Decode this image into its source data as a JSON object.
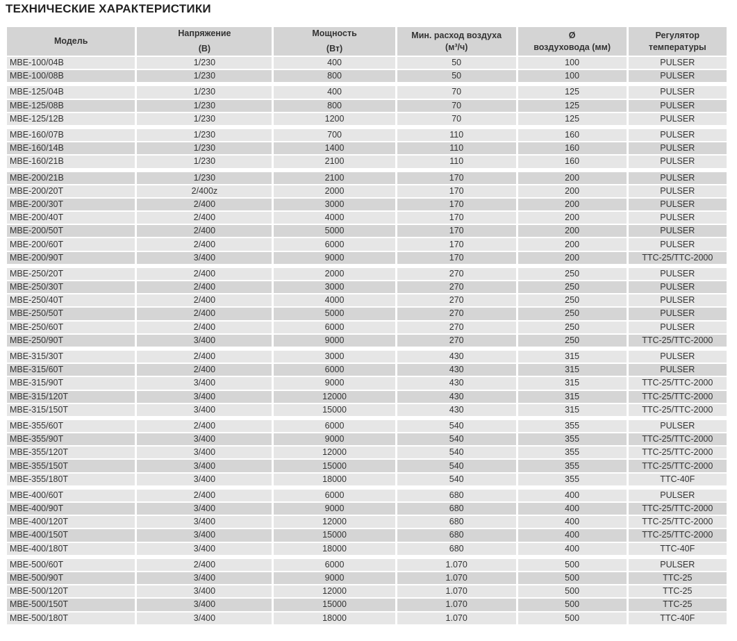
{
  "title": "ТЕХНИЧЕСКИЕ ХАРАКТЕРИСТИКИ",
  "columns": [
    {
      "line1": "Модель",
      "line2": ""
    },
    {
      "line1": "Напряжение",
      "line2": "(В)"
    },
    {
      "line1": "Мощность",
      "line2": "(Вт)"
    },
    {
      "line1": "Мин. расход воздуха",
      "line2": "(м³/ч)"
    },
    {
      "line1": "Ø",
      "line2": "воздуховода (мм)"
    },
    {
      "line1": "Регулятор",
      "line2": "температуры"
    }
  ],
  "groups": [
    [
      [
        "MBE-100/04B",
        "1/230",
        "400",
        "50",
        "100",
        "PULSER"
      ],
      [
        "MBE-100/08B",
        "1/230",
        "800",
        "50",
        "100",
        "PULSER"
      ]
    ],
    [
      [
        "MBE-125/04B",
        "1/230",
        "400",
        "70",
        "125",
        "PULSER"
      ],
      [
        "MBE-125/08B",
        "1/230",
        "800",
        "70",
        "125",
        "PULSER"
      ],
      [
        "MBE-125/12B",
        "1/230",
        "1200",
        "70",
        "125",
        "PULSER"
      ]
    ],
    [
      [
        "MBE-160/07B",
        "1/230",
        "700",
        "110",
        "160",
        "PULSER"
      ],
      [
        "MBE-160/14B",
        "1/230",
        "1400",
        "110",
        "160",
        "PULSER"
      ],
      [
        "MBE-160/21B",
        "1/230",
        "2100",
        "110",
        "160",
        "PULSER"
      ]
    ],
    [
      [
        "MBE-200/21B",
        "1/230",
        "2100",
        "170",
        "200",
        "PULSER"
      ],
      [
        "MBE-200/20T",
        "2/400z",
        "2000",
        "170",
        "200",
        "PULSER"
      ],
      [
        "MBE-200/30T",
        "2/400",
        "3000",
        "170",
        "200",
        "PULSER"
      ],
      [
        "MBE-200/40T",
        "2/400",
        "4000",
        "170",
        "200",
        "PULSER"
      ],
      [
        "MBE-200/50T",
        "2/400",
        "5000",
        "170",
        "200",
        "PULSER"
      ],
      [
        "MBE-200/60T",
        "2/400",
        "6000",
        "170",
        "200",
        "PULSER"
      ],
      [
        "MBE-200/90T",
        "3/400",
        "9000",
        "170",
        "200",
        "TTC-25/TTC-2000"
      ]
    ],
    [
      [
        "MBE-250/20T",
        "2/400",
        "2000",
        "270",
        "250",
        "PULSER"
      ],
      [
        "MBE-250/30T",
        "2/400",
        "3000",
        "270",
        "250",
        "PULSER"
      ],
      [
        "MBE-250/40T",
        "2/400",
        "4000",
        "270",
        "250",
        "PULSER"
      ],
      [
        "MBE-250/50T",
        "2/400",
        "5000",
        "270",
        "250",
        "PULSER"
      ],
      [
        "MBE-250/60T",
        "2/400",
        "6000",
        "270",
        "250",
        "PULSER"
      ],
      [
        "MBE-250/90T",
        "3/400",
        "9000",
        "270",
        "250",
        "TTC-25/TTC-2000"
      ]
    ],
    [
      [
        "MBE-315/30T",
        "2/400",
        "3000",
        "430",
        "315",
        "PULSER"
      ],
      [
        "MBE-315/60T",
        "2/400",
        "6000",
        "430",
        "315",
        "PULSER"
      ],
      [
        "MBE-315/90T",
        "3/400",
        "9000",
        "430",
        "315",
        "TTC-25/TTC-2000"
      ],
      [
        "MBE-315/120T",
        "3/400",
        "12000",
        "430",
        "315",
        "TTC-25/TTC-2000"
      ],
      [
        "MBE-315/150T",
        "3/400",
        "15000",
        "430",
        "315",
        "TTC-25/TTC-2000"
      ]
    ],
    [
      [
        "MBE-355/60T",
        "2/400",
        "6000",
        "540",
        "355",
        "PULSER"
      ],
      [
        "MBE-355/90T",
        "3/400",
        "9000",
        "540",
        "355",
        "TTC-25/TTC-2000"
      ],
      [
        "MBE-355/120T",
        "3/400",
        "12000",
        "540",
        "355",
        "TTC-25/TTC-2000"
      ],
      [
        "MBE-355/150T",
        "3/400",
        "15000",
        "540",
        "355",
        "TTC-25/TTC-2000"
      ],
      [
        "MBE-355/180T",
        "3/400",
        "18000",
        "540",
        "355",
        "TTC-40F"
      ]
    ],
    [
      [
        "MBE-400/60T",
        "2/400",
        "6000",
        "680",
        "400",
        "PULSER"
      ],
      [
        "MBE-400/90T",
        "3/400",
        "9000",
        "680",
        "400",
        "TTC-25/TTC-2000"
      ],
      [
        "MBE-400/120T",
        "3/400",
        "12000",
        "680",
        "400",
        "TTC-25/TTC-2000"
      ],
      [
        "MBE-400/150T",
        "3/400",
        "15000",
        "680",
        "400",
        "TTC-25/TTC-2000"
      ],
      [
        "MBE-400/180T",
        "3/400",
        "18000",
        "680",
        "400",
        "TTC-40F"
      ]
    ],
    [
      [
        "MBE-500/60T",
        "2/400",
        "6000",
        "1.070",
        "500",
        "PULSER"
      ],
      [
        "MBE-500/90T",
        "3/400",
        "9000",
        "1.070",
        "500",
        "TTC-25"
      ],
      [
        "MBE-500/120T",
        "3/400",
        "12000",
        "1.070",
        "500",
        "TTC-25"
      ],
      [
        "MBE-500/150T",
        "3/400",
        "15000",
        "1.070",
        "500",
        "TTC-25"
      ],
      [
        "MBE-500/180T",
        "3/400",
        "18000",
        "1.070",
        "500",
        "TTC-40F"
      ]
    ]
  ]
}
